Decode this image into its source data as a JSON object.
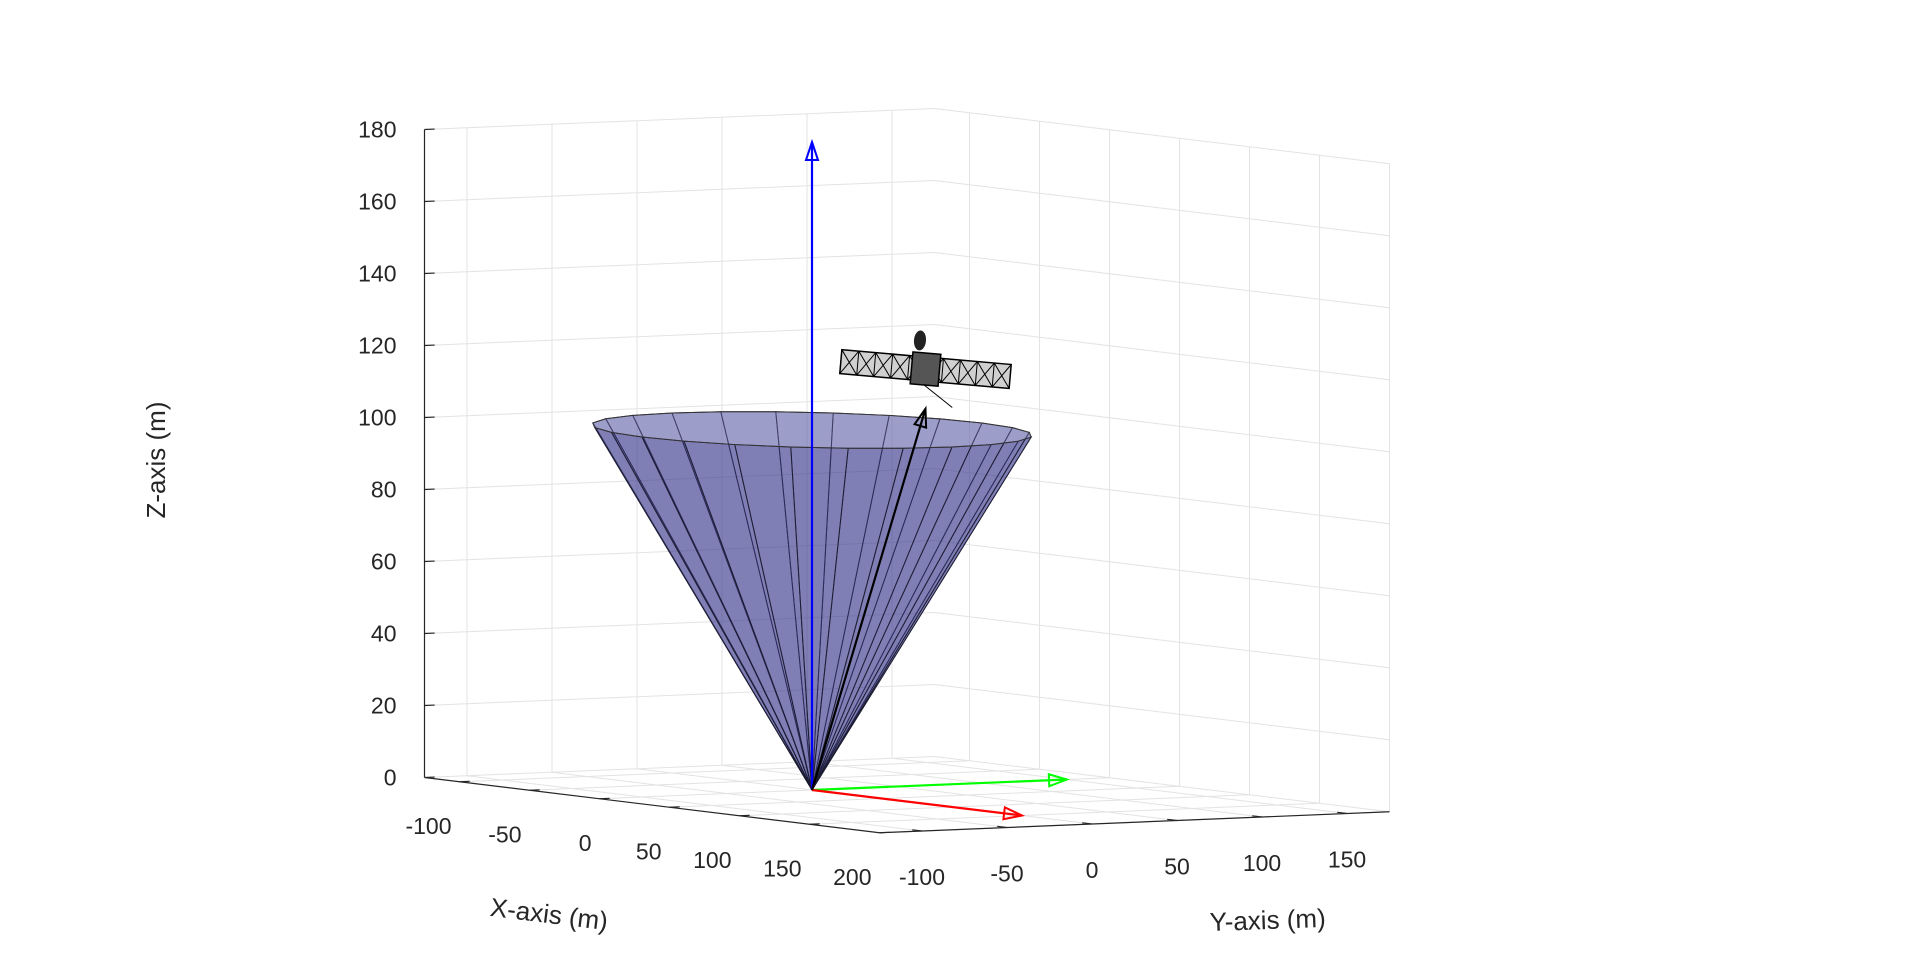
{
  "chart_data": {
    "type": "3d-surface",
    "xlabel": "X-axis (m)",
    "ylabel": "Y-axis (m)",
    "zlabel": "Z-axis (m)",
    "x_ticks": [
      "-100",
      "-50",
      "0",
      "50",
      "100",
      "150",
      "200"
    ],
    "y_ticks": [
      "-100",
      "-50",
      "0",
      "50",
      "100",
      "150"
    ],
    "z_ticks": [
      "0",
      "20",
      "40",
      "60",
      "80",
      "100",
      "120",
      "140",
      "160",
      "180"
    ],
    "xlim": [
      -125,
      200
    ],
    "ylim": [
      -125,
      175
    ],
    "zlim": [
      0,
      180
    ],
    "grid": true,
    "cone": {
      "apex": [
        0,
        0,
        0
      ],
      "height": 100,
      "radius": 100,
      "color": "#3f3f8f",
      "facets": 24
    },
    "vectors": [
      {
        "color": "#0000ff",
        "from": [
          0,
          0,
          0
        ],
        "to": [
          0,
          0,
          180
        ]
      },
      {
        "color": "#00ff00",
        "from": [
          0,
          0,
          0
        ],
        "to": [
          0,
          150,
          0
        ]
      },
      {
        "color": "#ff0000",
        "from": [
          0,
          0,
          0
        ],
        "to": [
          150,
          0,
          0
        ]
      },
      {
        "color": "#000000",
        "from": [
          0,
          0,
          0
        ],
        "to": [
          -10,
          75,
          104
        ]
      }
    ],
    "satellite": {
      "position": [
        -10,
        75,
        115
      ]
    }
  }
}
